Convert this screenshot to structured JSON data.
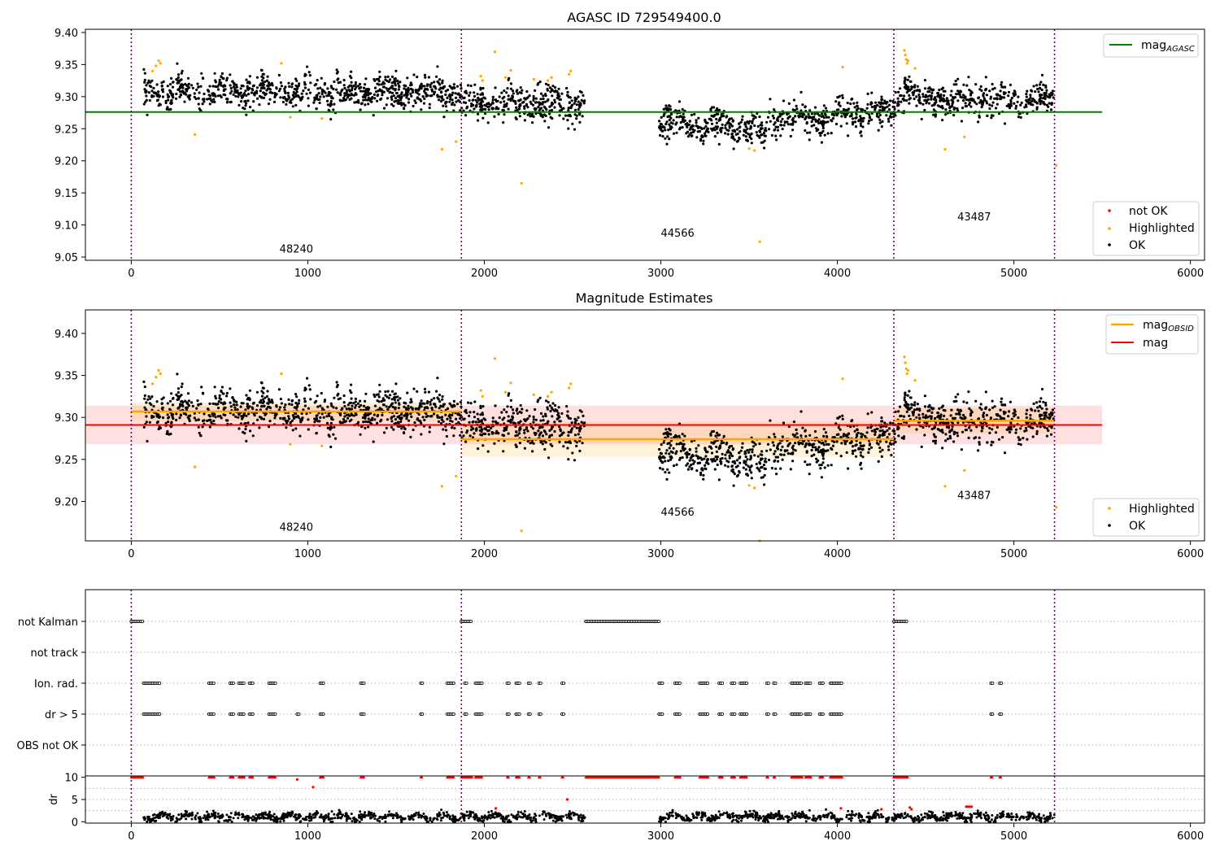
{
  "chart_data": [
    {
      "id": "agasc",
      "type": "scatter",
      "title": "AGASC ID 729549400.0",
      "xlim": [
        -260,
        6080
      ],
      "ylim": [
        9.045,
        9.405
      ],
      "xticks": [
        0,
        1000,
        2000,
        3000,
        4000,
        5000,
        6000
      ],
      "yticks": [
        9.05,
        9.1,
        9.15,
        9.2,
        9.25,
        9.3,
        9.35,
        9.4
      ],
      "obsid_boundaries": [
        0,
        1870,
        4320,
        5230
      ],
      "obsid_labels": [
        {
          "text": "48240",
          "x": 935,
          "y": 9.057
        },
        {
          "text": "44566",
          "x": 3095,
          "y": 9.082
        },
        {
          "text": "43487",
          "x": 4775,
          "y": 9.107
        }
      ],
      "reference_lines": [
        {
          "name": "mag_AGASC",
          "y": 9.276,
          "x": [
            -260,
            5500
          ],
          "color": "#008000"
        }
      ],
      "legend_top": {
        "main": "mag",
        "sub": "AGASC",
        "color": "#008000",
        "placement": "top-right"
      },
      "legend_bottom": {
        "placement": "lower-right",
        "entries": [
          {
            "label": "not OK",
            "color": "#ff0000"
          },
          {
            "label": "Highlighted",
            "color": "#ffa500"
          },
          {
            "label": "OK",
            "color": "#000000"
          }
        ]
      }
    },
    {
      "id": "estimates",
      "type": "scatter",
      "title": "Magnitude Estimates",
      "xlim": [
        -260,
        6080
      ],
      "ylim": [
        9.153,
        9.428
      ],
      "xticks": [
        0,
        1000,
        2000,
        3000,
        4000,
        5000,
        6000
      ],
      "yticks": [
        9.2,
        9.25,
        9.3,
        9.35,
        9.4
      ],
      "obsid_boundaries": [
        0,
        1870,
        4320,
        5230
      ],
      "obsid_labels": [
        {
          "text": "48240",
          "x": 935,
          "y": 9.165
        },
        {
          "text": "44566",
          "x": 3095,
          "y": 9.183
        },
        {
          "text": "43487",
          "x": 4775,
          "y": 9.203
        }
      ],
      "mag": {
        "value": 9.291,
        "band": [
          9.268,
          9.314
        ],
        "x": [
          -260,
          5500
        ],
        "color": "#ff0000"
      },
      "mag_obsid": [
        {
          "x": [
            0,
            1870
          ],
          "value": 9.307,
          "band": [
            9.296,
            9.318
          ]
        },
        {
          "x": [
            1870,
            4320
          ],
          "value": 9.274,
          "band": [
            9.253,
            9.295
          ]
        },
        {
          "x": [
            4320,
            5230
          ],
          "value": 9.296,
          "band": [
            9.281,
            9.311
          ]
        }
      ],
      "legend_top": {
        "placement": "top-right",
        "entries": [
          {
            "main": "mag",
            "sub": "OBSID",
            "color": "#ffa500"
          },
          {
            "main": "mag",
            "sub": "",
            "color": "#ff0000"
          }
        ]
      },
      "legend_bottom": {
        "placement": "lower-right",
        "entries": [
          {
            "label": "Highlighted",
            "color": "#ffa500"
          },
          {
            "label": "OK",
            "color": "#000000"
          }
        ]
      }
    },
    {
      "id": "flags",
      "type": "scatter",
      "xlim": [
        -260,
        6080
      ],
      "categories": [
        "not Kalman",
        "not track",
        "Ion. rad.",
        "dr > 5",
        "OBS not OK"
      ],
      "obsid_boundaries": [
        0,
        1870,
        4320,
        5230
      ],
      "flag_segments": {
        "not Kalman": [
          [
            0,
            70
          ],
          [
            1870,
            1930
          ],
          [
            2575,
            2990
          ],
          [
            4320,
            4400
          ]
        ],
        "not track": [],
        "Ion. rad.": [
          [
            70,
            160
          ],
          [
            440,
            470
          ],
          [
            560,
            580
          ],
          [
            610,
            640
          ],
          [
            670,
            690
          ],
          [
            780,
            820
          ],
          [
            1070,
            1090
          ],
          [
            1300,
            1320
          ],
          [
            1640,
            1650
          ],
          [
            1790,
            1830
          ],
          [
            1890,
            1900
          ],
          [
            1950,
            1990
          ],
          [
            2130,
            2140
          ],
          [
            2180,
            2200
          ],
          [
            2250,
            2260
          ],
          [
            2310,
            2320
          ],
          [
            2440,
            2450
          ],
          [
            2990,
            3010
          ],
          [
            3080,
            3110
          ],
          [
            3220,
            3270
          ],
          [
            3330,
            3350
          ],
          [
            3400,
            3420
          ],
          [
            3450,
            3490
          ],
          [
            3600,
            3610
          ],
          [
            3640,
            3650
          ],
          [
            3740,
            3800
          ],
          [
            3820,
            3850
          ],
          [
            3900,
            3920
          ],
          [
            3960,
            4030
          ],
          [
            4870,
            4880
          ],
          [
            4920,
            4930
          ]
        ],
        "dr > 5": [
          [
            70,
            160
          ],
          [
            440,
            470
          ],
          [
            560,
            580
          ],
          [
            610,
            640
          ],
          [
            670,
            690
          ],
          [
            780,
            820
          ],
          [
            940,
            950
          ],
          [
            1070,
            1090
          ],
          [
            1300,
            1320
          ],
          [
            1640,
            1650
          ],
          [
            1790,
            1830
          ],
          [
            1890,
            1900
          ],
          [
            1950,
            1990
          ],
          [
            2130,
            2140
          ],
          [
            2180,
            2200
          ],
          [
            2250,
            2260
          ],
          [
            2310,
            2320
          ],
          [
            2440,
            2450
          ],
          [
            2990,
            3010
          ],
          [
            3080,
            3110
          ],
          [
            3220,
            3270
          ],
          [
            3330,
            3350
          ],
          [
            3400,
            3420
          ],
          [
            3450,
            3490
          ],
          [
            3600,
            3610
          ],
          [
            3640,
            3650
          ],
          [
            3740,
            3800
          ],
          [
            3820,
            3850
          ],
          [
            3900,
            3920
          ],
          [
            3960,
            4030
          ],
          [
            4870,
            4880
          ],
          [
            4920,
            4930
          ]
        ],
        "OBS not OK": []
      }
    },
    {
      "id": "dr",
      "type": "scatter",
      "ylabel": "dr",
      "xlim": [
        -260,
        6080
      ],
      "ylim": [
        -0.3,
        10.3
      ],
      "xticks": [
        0,
        1000,
        2000,
        3000,
        4000,
        5000,
        6000
      ],
      "yticks": [
        0,
        5,
        10
      ],
      "obsid_boundaries": [
        0,
        1870,
        4320,
        5230
      ],
      "clipped_value": 10,
      "clipped_segments": [
        [
          0,
          70
        ],
        [
          440,
          470
        ],
        [
          560,
          580
        ],
        [
          610,
          640
        ],
        [
          670,
          690
        ],
        [
          780,
          820
        ],
        [
          1070,
          1090
        ],
        [
          1300,
          1320
        ],
        [
          1640,
          1650
        ],
        [
          1790,
          1830
        ],
        [
          1870,
          1930
        ],
        [
          1950,
          1990
        ],
        [
          2130,
          2140
        ],
        [
          2180,
          2200
        ],
        [
          2250,
          2260
        ],
        [
          2310,
          2320
        ],
        [
          2440,
          2450
        ],
        [
          2575,
          2990
        ],
        [
          3080,
          3110
        ],
        [
          3220,
          3270
        ],
        [
          3330,
          3350
        ],
        [
          3400,
          3420
        ],
        [
          3450,
          3490
        ],
        [
          3600,
          3610
        ],
        [
          3640,
          3650
        ],
        [
          3740,
          3800
        ],
        [
          3820,
          3850
        ],
        [
          3900,
          3920
        ],
        [
          3960,
          4030
        ],
        [
          4320,
          4400
        ],
        [
          4870,
          4880
        ],
        [
          4920,
          4930
        ]
      ],
      "red_points": [
        [
          940,
          9.5
        ],
        [
          1030,
          7.8
        ],
        [
          2065,
          3.0
        ],
        [
          2470,
          5.0
        ],
        [
          4020,
          3.0
        ],
        [
          4250,
          2.8
        ],
        [
          4410,
          3.2
        ],
        [
          4420,
          2.8
        ],
        [
          4730,
          3.4
        ],
        [
          4740,
          3.4
        ],
        [
          4750,
          3.4
        ],
        [
          4760,
          3.4
        ]
      ]
    }
  ]
}
